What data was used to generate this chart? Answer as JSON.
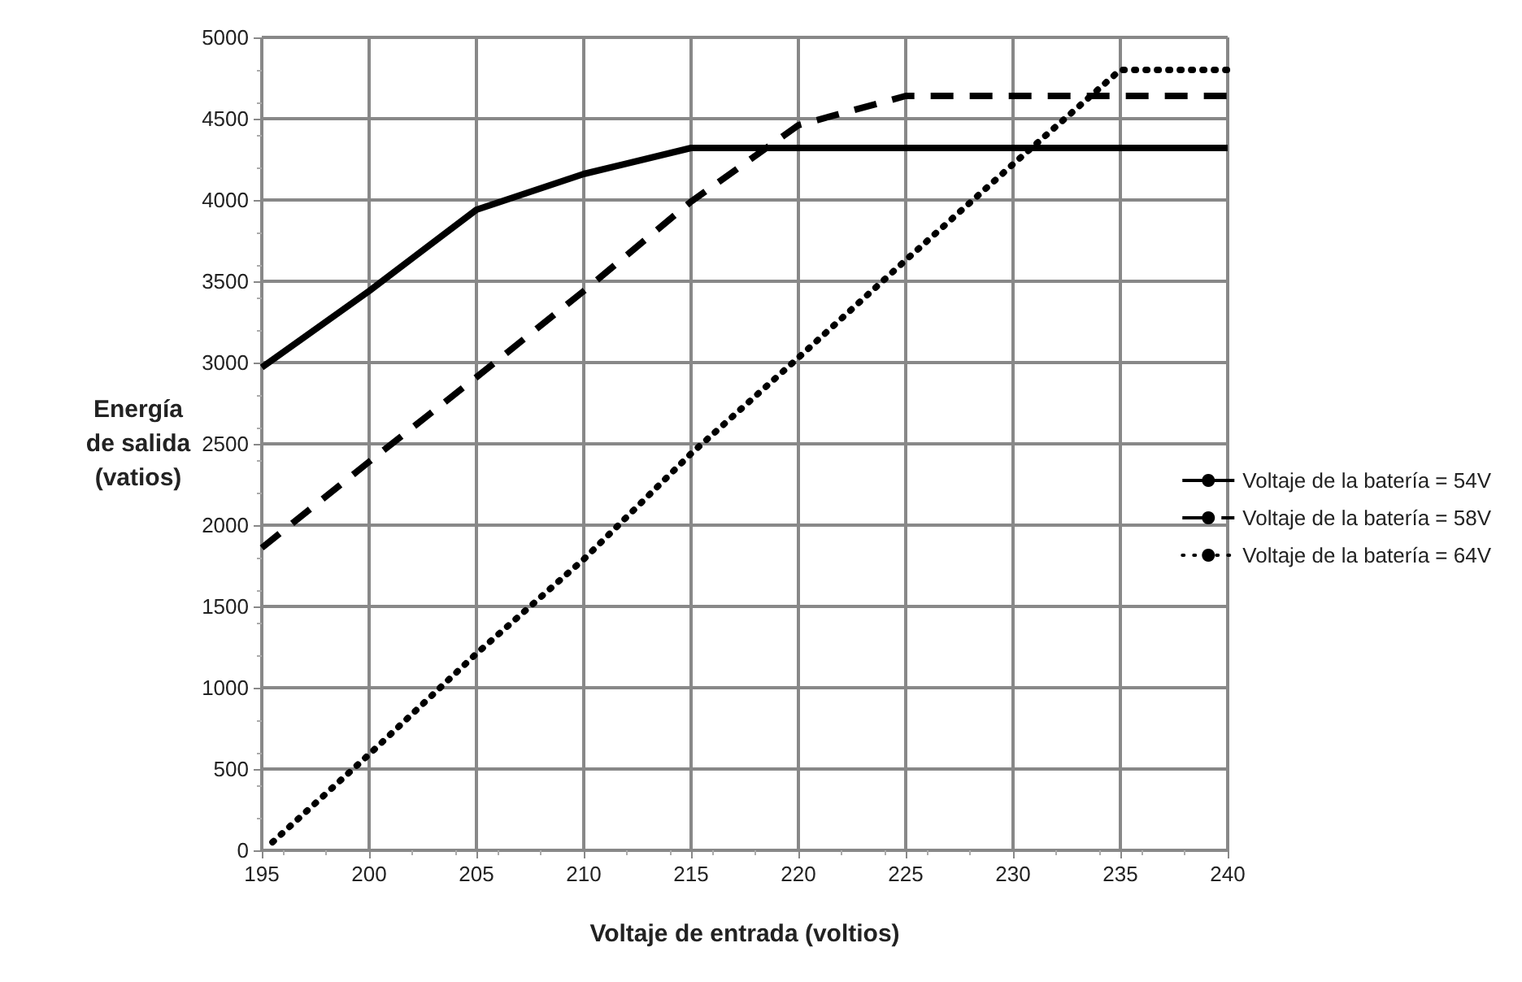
{
  "chart_data": {
    "type": "line",
    "xlabel": "Voltaje de entrada (voltios)",
    "ylabel": "Energía\nde salida\n(vatios)",
    "xlim": [
      195,
      240
    ],
    "xticks": [
      195,
      200,
      205,
      210,
      215,
      220,
      225,
      230,
      235,
      240
    ],
    "ylim": [
      0,
      5000
    ],
    "yticks": [
      0,
      500,
      1000,
      1500,
      2000,
      2500,
      3000,
      3500,
      4000,
      4500,
      5000
    ],
    "grid": true,
    "legend": "right",
    "marker": "none",
    "series": [
      {
        "name": "Voltaje de la batería = 54V",
        "color": "#000000",
        "line_style": "solid",
        "x": [
          195,
          200,
          205,
          210,
          215,
          240
        ],
        "values": [
          2970,
          3440,
          3940,
          4160,
          4320,
          4320
        ]
      },
      {
        "name": "Voltaje de la batería = 58V",
        "color": "#000000",
        "line_style": "dashed",
        "x": [
          195,
          200,
          205,
          210,
          215,
          220,
          225,
          240
        ],
        "values": [
          1860,
          2390,
          2910,
          3440,
          3990,
          4460,
          4640,
          4640
        ]
      },
      {
        "name": "Voltaje de la batería = 64V",
        "color": "#000000",
        "line_style": "dotted",
        "x": [
          195.5,
          200,
          205,
          210,
          215,
          220,
          225,
          230,
          235,
          240
        ],
        "values": [
          50,
          590,
          1210,
          1790,
          2440,
          3030,
          3630,
          4220,
          4800,
          4800
        ]
      }
    ]
  }
}
